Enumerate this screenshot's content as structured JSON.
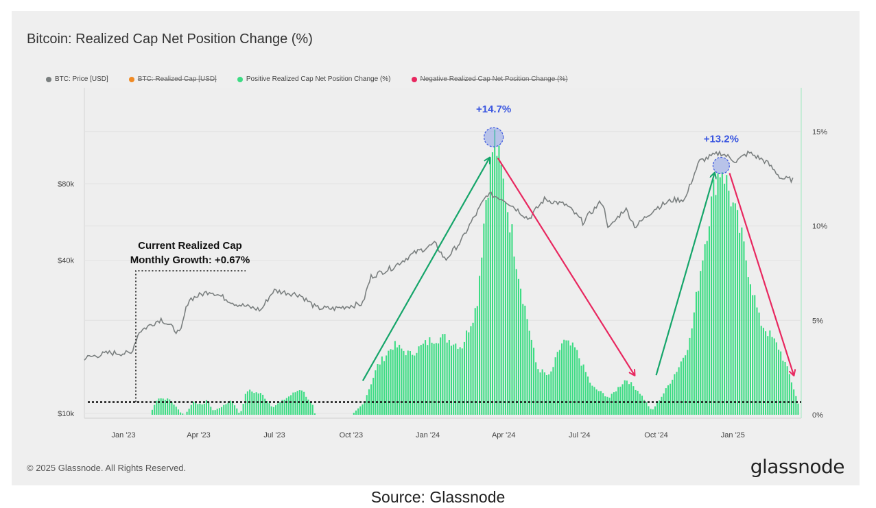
{
  "chart_data": {
    "type": "line",
    "title": "Bitcoin: Realized Cap Net Position Change (%)",
    "legend": [
      {
        "name": "BTC: Price [USD]",
        "color": "#7a7f7f",
        "active": true
      },
      {
        "name": "BTC: Realized Cap [USD]",
        "color": "#f08a24",
        "active": false
      },
      {
        "name": "Positive Realized Cap Net Position Change (%)",
        "color": "#3ddc84",
        "active": true
      },
      {
        "name": "Negative Realized Cap Net Position Change (%)",
        "color": "#e8275f",
        "active": false
      }
    ],
    "x_ticks": [
      "Jan '23",
      "Apr '23",
      "Jul '23",
      "Oct '23",
      "Jan '24",
      "Apr '24",
      "Jul '24",
      "Oct '24",
      "Jan '25"
    ],
    "left_axis": {
      "scale": "log",
      "ticks": [
        "$10k",
        "$40k",
        "$80k"
      ],
      "tick_values": [
        10000,
        40000,
        80000
      ]
    },
    "right_axis": {
      "ticks": [
        "0%",
        "5%",
        "10%",
        "15%"
      ],
      "tick_values": [
        0,
        5,
        10,
        15
      ],
      "ylim": [
        0,
        17.5
      ]
    },
    "series": [
      {
        "name": "BTC: Price [USD]",
        "axis": "left",
        "points": [
          [
            "2022-11-15",
            16500
          ],
          [
            "2022-12-15",
            17300
          ],
          [
            "2023-01-10",
            17200
          ],
          [
            "2023-01-20",
            21000
          ],
          [
            "2023-02-15",
            23500
          ],
          [
            "2023-03-10",
            20500
          ],
          [
            "2023-03-20",
            28000
          ],
          [
            "2023-04-15",
            30300
          ],
          [
            "2023-05-15",
            27000
          ],
          [
            "2023-06-15",
            25500
          ],
          [
            "2023-06-30",
            30400
          ],
          [
            "2023-07-31",
            29300
          ],
          [
            "2023-08-20",
            26000
          ],
          [
            "2023-09-10",
            25800
          ],
          [
            "2023-10-15",
            27000
          ],
          [
            "2023-10-25",
            34500
          ],
          [
            "2023-11-20",
            37500
          ],
          [
            "2023-12-15",
            42500
          ],
          [
            "2024-01-10",
            46500
          ],
          [
            "2024-01-22",
            40000
          ],
          [
            "2024-02-10",
            47500
          ],
          [
            "2024-02-29",
            61500
          ],
          [
            "2024-03-13",
            73000
          ],
          [
            "2024-04-01",
            69500
          ],
          [
            "2024-05-01",
            58000
          ],
          [
            "2024-05-20",
            69500
          ],
          [
            "2024-06-15",
            66000
          ],
          [
            "2024-07-05",
            56500
          ],
          [
            "2024-07-28",
            68500
          ],
          [
            "2024-08-05",
            53000
          ],
          [
            "2024-08-25",
            64000
          ],
          [
            "2024-09-06",
            54000
          ],
          [
            "2024-09-30",
            64000
          ],
          [
            "2024-10-20",
            69000
          ],
          [
            "2024-11-05",
            69500
          ],
          [
            "2024-11-22",
            98000
          ],
          [
            "2024-12-17",
            106000
          ],
          [
            "2025-01-05",
            98000
          ],
          [
            "2025-01-20",
            106000
          ],
          [
            "2025-02-10",
            97500
          ],
          [
            "2025-02-28",
            84000
          ],
          [
            "2025-03-15",
            83000
          ]
        ]
      },
      {
        "name": "Positive Realized Cap Net Position Change (%)",
        "axis": "right",
        "points": [
          [
            "2023-02-01",
            0
          ],
          [
            "2023-02-10",
            0.9
          ],
          [
            "2023-02-25",
            0.8
          ],
          [
            "2023-03-10",
            0.1
          ],
          [
            "2023-03-15",
            0
          ],
          [
            "2023-03-25",
            0.7
          ],
          [
            "2023-04-05",
            0.5
          ],
          [
            "2023-04-10",
            0.8
          ],
          [
            "2023-04-18",
            0.2
          ],
          [
            "2023-05-01",
            0.5
          ],
          [
            "2023-05-10",
            0.8
          ],
          [
            "2023-05-20",
            0
          ],
          [
            "2023-05-28",
            1.3
          ],
          [
            "2023-06-15",
            1.1
          ],
          [
            "2023-06-28",
            0.4
          ],
          [
            "2023-07-15",
            0.9
          ],
          [
            "2023-08-01",
            1.4
          ],
          [
            "2023-08-15",
            0.5
          ],
          [
            "2023-08-18",
            0
          ],
          [
            "2023-10-01",
            0
          ],
          [
            "2023-10-15",
            0.6
          ],
          [
            "2023-11-01",
            2.6
          ],
          [
            "2023-11-20",
            3.7
          ],
          [
            "2023-12-10",
            3.2
          ],
          [
            "2024-01-05",
            4.0
          ],
          [
            "2024-01-20",
            4.1
          ],
          [
            "2024-02-10",
            3.6
          ],
          [
            "2024-02-28",
            5.8
          ],
          [
            "2024-03-10",
            11.5
          ],
          [
            "2024-03-20",
            14.7
          ],
          [
            "2024-04-01",
            12.0
          ],
          [
            "2024-04-20",
            7.0
          ],
          [
            "2024-05-10",
            2.5
          ],
          [
            "2024-05-25",
            2.0
          ],
          [
            "2024-06-10",
            3.9
          ],
          [
            "2024-06-25",
            3.5
          ],
          [
            "2024-07-15",
            1.5
          ],
          [
            "2024-08-05",
            0.9
          ],
          [
            "2024-08-25",
            1.9
          ],
          [
            "2024-09-10",
            1.2
          ],
          [
            "2024-09-25",
            0.2
          ],
          [
            "2024-10-10",
            1.2
          ],
          [
            "2024-10-28",
            2.6
          ],
          [
            "2024-11-10",
            4.0
          ],
          [
            "2024-11-25",
            8.5
          ],
          [
            "2024-12-10",
            12.4
          ],
          [
            "2024-12-18",
            13.2
          ],
          [
            "2025-01-10",
            9.5
          ],
          [
            "2025-02-01",
            5.0
          ],
          [
            "2025-02-25",
            3.5
          ],
          [
            "2025-03-10",
            2.0
          ],
          [
            "2025-03-20",
            0.5
          ]
        ]
      }
    ],
    "reference_lines": [
      {
        "label": "Current Realized Cap\nMonthly Growth: +0.67%",
        "value": 0.67,
        "axis": "right",
        "style": "dotted"
      }
    ],
    "annotations": [
      {
        "text": "+14.7%",
        "date": "2024-03-20",
        "value": 14.7,
        "color": "#3a56e0"
      },
      {
        "text": "+13.2%",
        "date": "2024-12-18",
        "value": 13.2,
        "color": "#3a56e0"
      }
    ],
    "trend_arrows": [
      {
        "color": "#15a56a",
        "from": [
          "2023-10-15",
          1.8
        ],
        "to": [
          "2024-03-15",
          13.6
        ]
      },
      {
        "color": "#e8275f",
        "from": [
          "2024-03-25",
          13.6
        ],
        "to": [
          "2024-09-05",
          2.1
        ]
      },
      {
        "color": "#15a56a",
        "from": [
          "2024-10-01",
          2.1
        ],
        "to": [
          "2024-12-10",
          12.8
        ]
      },
      {
        "color": "#e8275f",
        "from": [
          "2024-12-28",
          12.8
        ],
        "to": [
          "2025-03-15",
          2.1
        ]
      }
    ],
    "grid": true,
    "legend_placement": "top-left"
  },
  "copyright": "© 2025 Glassnode. All Rights Reserved.",
  "logo": "glassnode",
  "source": "Source: Glassnode"
}
